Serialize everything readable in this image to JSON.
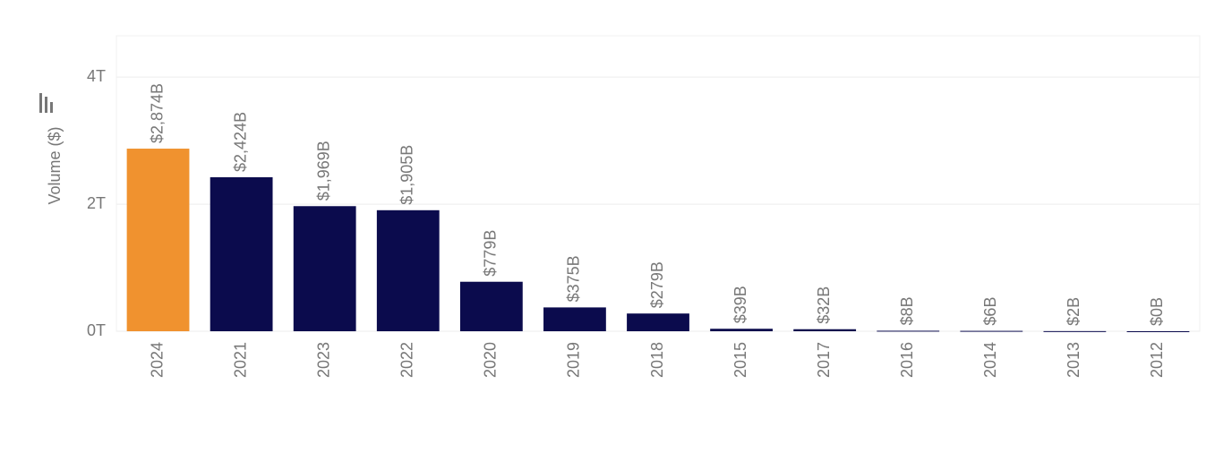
{
  "chart_data": {
    "type": "bar",
    "y_label": "Volume ($)",
    "categories": [
      "2024",
      "2021",
      "2023",
      "2022",
      "2020",
      "2019",
      "2018",
      "2015",
      "2017",
      "2016",
      "2014",
      "2013",
      "2012"
    ],
    "values": [
      2874000000000,
      2424000000000,
      1969000000000,
      1905000000000,
      779000000000,
      375000000000,
      279000000000,
      39000000000,
      32000000000,
      8000000000,
      6000000000,
      2000000000,
      0
    ],
    "value_labels": [
      "$2,874B",
      "$2,424B",
      "$1,969B",
      "$1,905B",
      "$779B",
      "$375B",
      "$279B",
      "$39B",
      "$32B",
      "$8B",
      "$6B",
      "$2B",
      "$0B"
    ],
    "colors": [
      "#f0922f",
      "#0b0b4d",
      "#0b0b4d",
      "#0b0b4d",
      "#0b0b4d",
      "#0b0b4d",
      "#0b0b4d",
      "#0b0b4d",
      "#0b0b4d",
      "#0b0b4d",
      "#0b0b4d",
      "#0b0b4d",
      "#0b0b4d"
    ],
    "label_colors": [
      "#f0922f",
      "#1a1a6e",
      "#1a1a6e",
      "#1a1a6e",
      "#1a1a6e",
      "#1a1a6e",
      "#1a1a6e",
      "#1a1a6e",
      "#1a1a6e",
      "#1a1a6e",
      "#1a1a6e",
      "#1a1a6e",
      "#1a1a6e"
    ],
    "ylim": [
      0,
      4650000000000
    ],
    "yticks": [
      {
        "value": 0,
        "label": "0T"
      },
      {
        "value": 2000000000000,
        "label": "2T"
      },
      {
        "value": 4000000000000,
        "label": "4T"
      }
    ],
    "grid": true
  }
}
